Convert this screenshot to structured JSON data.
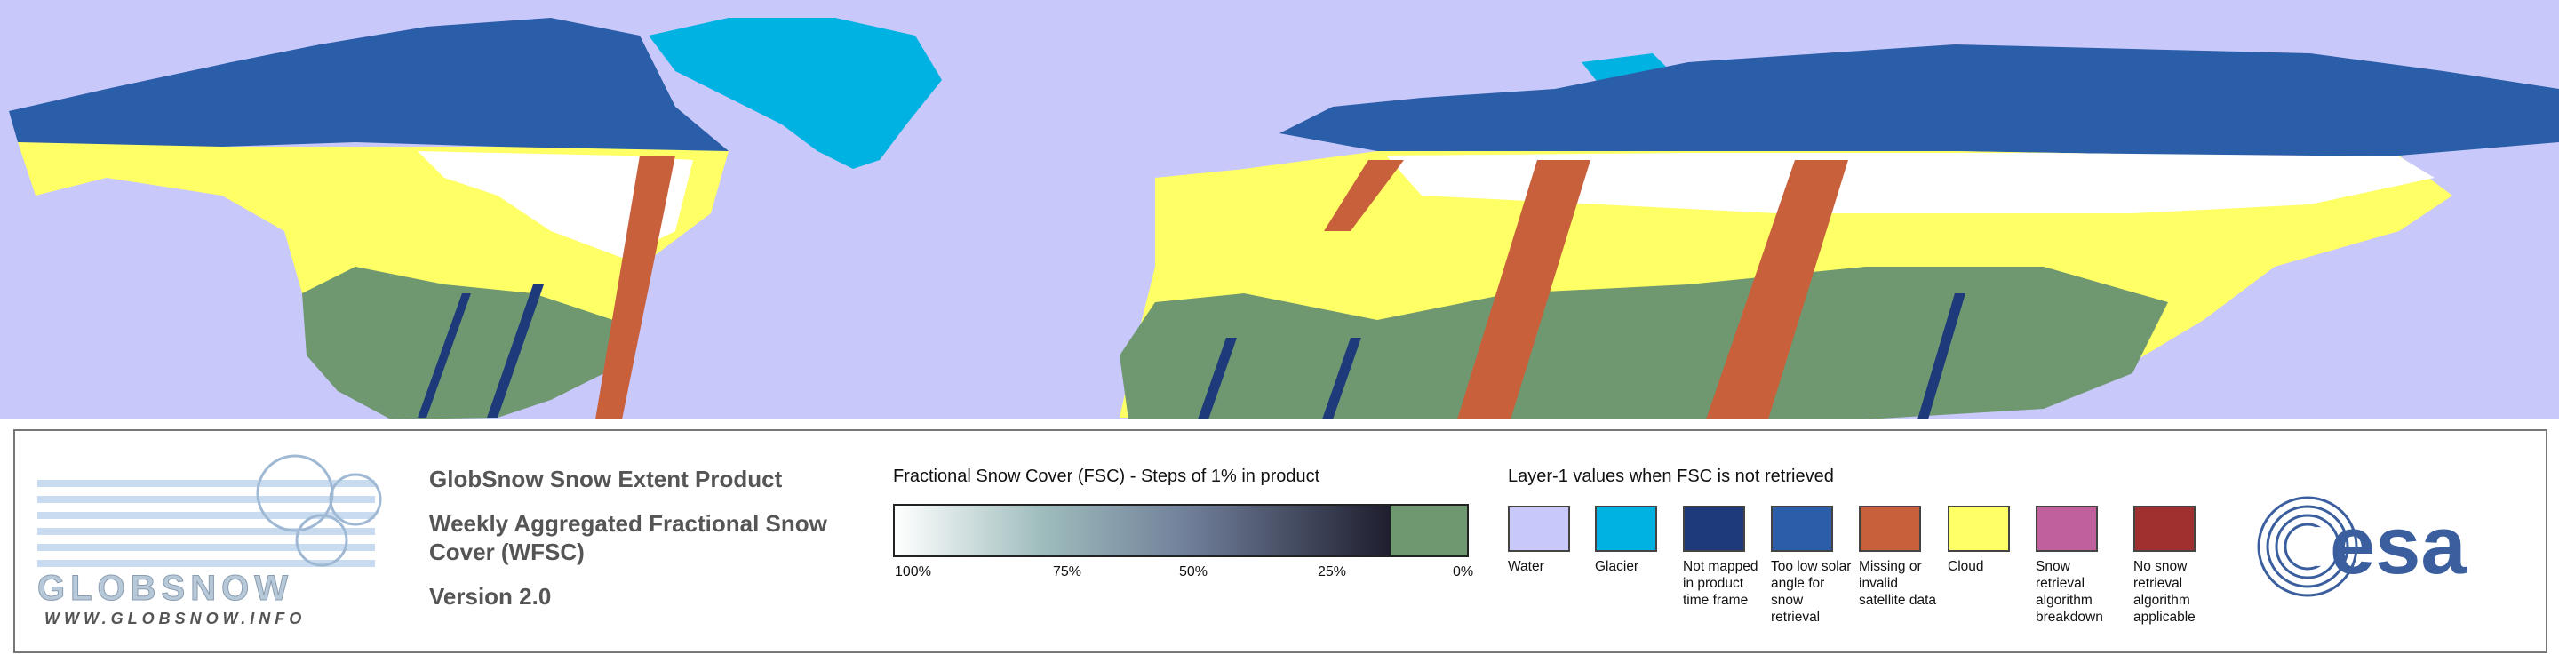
{
  "product": {
    "title": "GlobSnow Snow Extent Product",
    "subtitle": "Weekly Aggregated Fractional Snow Cover (WFSC)",
    "version": "Version 2.0"
  },
  "logo": {
    "name": "GLOBSNOW",
    "url": "WWW.GLOBSNOW.INFO",
    "agency": "esa"
  },
  "fsc_legend": {
    "title": "Fractional Snow Cover (FSC) - Steps of 1% in product",
    "ticks": [
      "100%",
      "75%",
      "50%",
      "25%",
      "0%"
    ]
  },
  "layer1_legend": {
    "title": "Layer-1 values when FSC is not retrieved",
    "items": [
      {
        "label": "Water",
        "color": "#c8c8fa"
      },
      {
        "label": "Glacier",
        "color": "#00b2e2"
      },
      {
        "label": "Not mapped in product time frame",
        "color": "#1f3a7a"
      },
      {
        "label": "Too low solar angle for snow retrieval",
        "color": "#2b5ea8"
      },
      {
        "label": "Missing or invalid satellite data",
        "color": "#c8603c"
      },
      {
        "label": "Cloud",
        "color": "#ffff66"
      },
      {
        "label": "Snow retrieval algorithm breakdown",
        "color": "#c0609c"
      },
      {
        "label": "No snow retrieval algorithm applicable",
        "color": "#a02f2f"
      }
    ]
  }
}
